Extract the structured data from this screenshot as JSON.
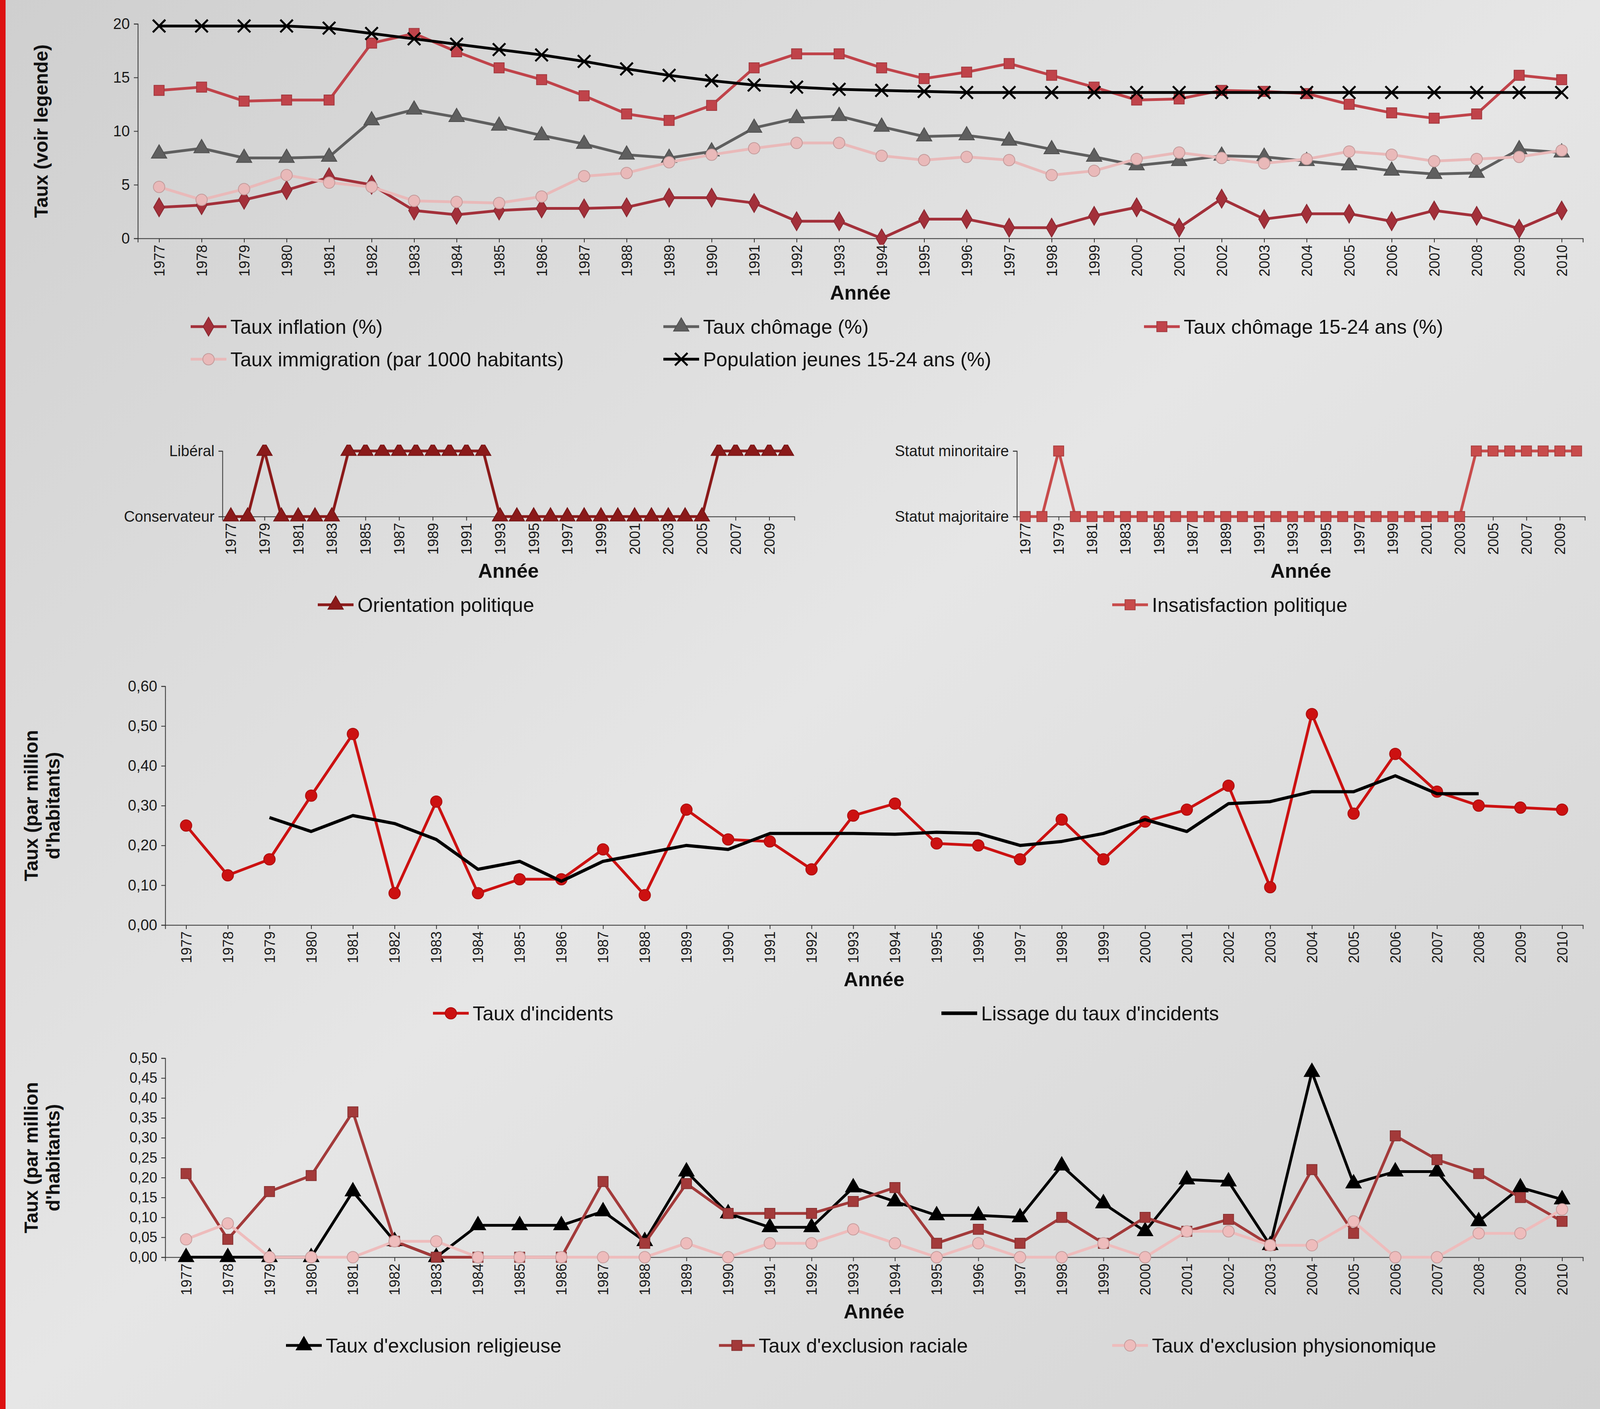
{
  "chart_data": [
    {
      "type": "line",
      "xlabel": "Année",
      "ylabel": "Taux (voir legende)",
      "grid": false,
      "legend": "bottom",
      "x": [
        1977,
        1978,
        1979,
        1980,
        1981,
        1982,
        1983,
        1984,
        1985,
        1986,
        1987,
        1988,
        1989,
        1990,
        1991,
        1992,
        1993,
        1994,
        1995,
        1996,
        1997,
        1998,
        1999,
        2000,
        2001,
        2002,
        2003,
        2004,
        2005,
        2006,
        2007,
        2008,
        2009,
        2010
      ],
      "xlim": [
        1976.5,
        2010.5
      ],
      "xticks": [
        1977,
        1978,
        1979,
        1980,
        1981,
        1982,
        1983,
        1984,
        1985,
        1986,
        1987,
        1988,
        1989,
        1990,
        1991,
        1992,
        1993,
        1994,
        1995,
        1996,
        1997,
        1998,
        1999,
        2000,
        2001,
        2002,
        2003,
        2004,
        2005,
        2006,
        2007,
        2008,
        2009,
        2010
      ],
      "ylim": [
        0,
        20
      ],
      "yticks": [
        0,
        5,
        10,
        15,
        20
      ],
      "series": [
        {
          "name": "Taux inflation (%)",
          "color": "#a3303a",
          "marker": "diamond",
          "line_style": "solid",
          "values": [
            2.9,
            3.1,
            3.6,
            4.5,
            5.7,
            5.0,
            2.6,
            2.2,
            2.6,
            2.8,
            2.8,
            2.9,
            3.8,
            3.8,
            3.3,
            1.6,
            1.6,
            0,
            1.8,
            1.8,
            1.0,
            1.0,
            2.1,
            2.9,
            1.0,
            3.7,
            1.8,
            2.3,
            2.3,
            1.6,
            2.6,
            2.1,
            0.9,
            2.6
          ]
        },
        {
          "name": "Taux chômage (%)",
          "color": "#5f5f5f",
          "marker": "triangle",
          "line_style": "solid",
          "values": [
            7.9,
            8.4,
            7.5,
            7.5,
            7.6,
            11.0,
            12.0,
            11.3,
            10.5,
            9.6,
            8.8,
            7.8,
            7.5,
            8.1,
            10.3,
            11.2,
            11.4,
            10.4,
            9.5,
            9.6,
            9.1,
            8.3,
            7.6,
            6.8,
            7.2,
            7.7,
            7.6,
            7.2,
            6.8,
            6.3,
            6.0,
            6.1,
            8.3,
            8.0
          ]
        },
        {
          "name": "Taux chômage 15-24 ans (%)",
          "color": "#c0434a",
          "marker": "square",
          "line_style": "solid",
          "values": [
            13.8,
            14.1,
            12.8,
            12.9,
            12.9,
            18.2,
            19.1,
            17.4,
            15.9,
            14.8,
            13.3,
            11.6,
            11.0,
            12.4,
            15.9,
            17.2,
            17.2,
            15.9,
            14.9,
            15.5,
            16.3,
            15.2,
            14.1,
            12.9,
            13.0,
            13.8,
            13.7,
            13.5,
            12.5,
            11.7,
            11.2,
            11.6,
            15.2,
            14.8
          ]
        },
        {
          "name": "Taux immigration (par 1000 habitants)",
          "color": "#e9b9b9",
          "marker": "circle",
          "line_style": "solid",
          "values": [
            4.8,
            3.6,
            4.6,
            5.9,
            5.2,
            4.8,
            3.5,
            3.4,
            3.3,
            3.9,
            5.8,
            6.1,
            7.1,
            7.8,
            8.4,
            8.9,
            8.9,
            7.7,
            7.3,
            7.6,
            7.3,
            5.9,
            6.3,
            7.4,
            8.0,
            7.5,
            7.0,
            7.4,
            8.1,
            7.8,
            7.2,
            7.4,
            7.6,
            8.2
          ]
        },
        {
          "name": "Population jeunes 15-24 ans (%)",
          "color": "#000000",
          "marker": "x",
          "line_style": "solid",
          "values": [
            19.8,
            19.8,
            19.8,
            19.8,
            19.6,
            19.1,
            18.6,
            18.1,
            17.6,
            17.1,
            16.5,
            15.8,
            15.2,
            14.7,
            14.3,
            14.1,
            13.9,
            13.8,
            13.7,
            13.6,
            13.6,
            13.6,
            13.6,
            13.6,
            13.6,
            13.6,
            13.6,
            13.6,
            13.6,
            13.6,
            13.6,
            13.6,
            13.6,
            13.6
          ]
        }
      ]
    },
    {
      "type": "line",
      "xlabel": "Année",
      "grid": false,
      "legend": "bottom",
      "x": [
        1977,
        1978,
        1979,
        1980,
        1981,
        1982,
        1983,
        1984,
        1985,
        1986,
        1987,
        1988,
        1989,
        1990,
        1991,
        1992,
        1993,
        1994,
        1995,
        1996,
        1997,
        1998,
        1999,
        2000,
        2001,
        2002,
        2003,
        2004,
        2005,
        2006,
        2007,
        2008,
        2009,
        2010
      ],
      "xlim": [
        1976.5,
        2010.5
      ],
      "xticks": [
        1977,
        1979,
        1981,
        1983,
        1985,
        1987,
        1989,
        1991,
        1993,
        1995,
        1997,
        1999,
        2001,
        2003,
        2005,
        2007,
        2009
      ],
      "ylim": [
        0,
        1
      ],
      "yticks": [
        {
          "value": 0,
          "label": "Conservateur"
        },
        {
          "value": 1,
          "label": "Libéral"
        }
      ],
      "series": [
        {
          "name": "Orientation politique",
          "color": "#8b1a1a",
          "marker": "triangle",
          "line_style": "solid",
          "values": [
            0,
            0,
            1,
            0,
            0,
            0,
            0,
            1,
            1,
            1,
            1,
            1,
            1,
            1,
            1,
            1,
            0,
            0,
            0,
            0,
            0,
            0,
            0,
            0,
            0,
            0,
            0,
            0,
            0,
            1,
            1,
            1,
            1,
            1
          ]
        }
      ]
    },
    {
      "type": "line",
      "xlabel": "Année",
      "grid": false,
      "legend": "bottom",
      "x": [
        1977,
        1978,
        1979,
        1980,
        1981,
        1982,
        1983,
        1984,
        1985,
        1986,
        1987,
        1988,
        1989,
        1990,
        1991,
        1992,
        1993,
        1994,
        1995,
        1996,
        1997,
        1998,
        1999,
        2000,
        2001,
        2002,
        2003,
        2004,
        2005,
        2006,
        2007,
        2008,
        2009,
        2010
      ],
      "xlim": [
        1976.5,
        2010.5
      ],
      "xticks": [
        1977,
        1979,
        1981,
        1983,
        1985,
        1987,
        1989,
        1991,
        1993,
        1995,
        1997,
        1999,
        2001,
        2003,
        2005,
        2007,
        2009
      ],
      "ylim": [
        0,
        1
      ],
      "yticks": [
        {
          "value": 0,
          "label": "Statut majoritaire"
        },
        {
          "value": 1,
          "label": "Statut minoritaire"
        }
      ],
      "series": [
        {
          "name": "Insatisfaction politique",
          "color": "#c84b4b",
          "marker": "square",
          "line_style": "solid",
          "values": [
            0,
            0,
            1,
            0,
            0,
            0,
            0,
            0,
            0,
            0,
            0,
            0,
            0,
            0,
            0,
            0,
            0,
            0,
            0,
            0,
            0,
            0,
            0,
            0,
            0,
            0,
            0,
            1,
            1,
            1,
            1,
            1,
            1,
            1
          ]
        }
      ]
    },
    {
      "type": "line",
      "xlabel": "Année",
      "ylabel": "Taux (par million d'habitants)",
      "grid": false,
      "legend": "bottom",
      "x": [
        1977,
        1978,
        1979,
        1980,
        1981,
        1982,
        1983,
        1984,
        1985,
        1986,
        1987,
        1988,
        1989,
        1990,
        1991,
        1992,
        1993,
        1994,
        1995,
        1996,
        1997,
        1998,
        1999,
        2000,
        2001,
        2002,
        2003,
        2004,
        2005,
        2006,
        2007,
        2008,
        2009,
        2010
      ],
      "xlim": [
        1976.5,
        2010.5
      ],
      "xticks": [
        1977,
        1978,
        1979,
        1980,
        1981,
        1982,
        1983,
        1984,
        1985,
        1986,
        1987,
        1988,
        1989,
        1990,
        1991,
        1992,
        1993,
        1994,
        1995,
        1996,
        1997,
        1998,
        1999,
        2000,
        2001,
        2002,
        2003,
        2004,
        2005,
        2006,
        2007,
        2008,
        2009,
        2010
      ],
      "ylim": [
        0,
        0.6
      ],
      "yticks": [
        {
          "value": 0,
          "label": "0,00"
        },
        {
          "value": 0.1,
          "label": "0,10"
        },
        {
          "value": 0.2,
          "label": "0,20"
        },
        {
          "value": 0.3,
          "label": "0,30"
        },
        {
          "value": 0.4,
          "label": "0,40"
        },
        {
          "value": 0.5,
          "label": "0,50"
        },
        {
          "value": 0.6,
          "label": "0,60"
        }
      ],
      "series": [
        {
          "name": "Taux d'incidents",
          "color": "#cc1111",
          "marker": "circle",
          "line_style": "solid",
          "values": [
            0.25,
            0.125,
            0.165,
            0.325,
            0.48,
            0.08,
            0.31,
            0.08,
            0.115,
            0.115,
            0.19,
            0.075,
            0.29,
            0.215,
            0.21,
            0.14,
            0.275,
            0.305,
            0.205,
            0.2,
            0.165,
            0.265,
            0.165,
            0.26,
            0.29,
            0.35,
            0.095,
            0.53,
            0.28,
            0.43,
            0.335,
            0.3,
            0.295,
            0.29
          ]
        },
        {
          "name": "Lissage du taux d'incidents",
          "color": "#000000",
          "marker": "none",
          "line_style": "solid",
          "values": [
            null,
            null,
            0.27,
            0.235,
            0.275,
            0.255,
            0.215,
            0.14,
            0.16,
            0.11,
            0.16,
            0.18,
            0.2,
            0.19,
            0.23,
            0.23,
            0.23,
            0.228,
            0.233,
            0.23,
            0.2,
            0.21,
            0.23,
            0.265,
            0.235,
            0.305,
            0.31,
            0.335,
            0.335,
            0.375,
            0.33,
            0.33,
            null,
            null
          ]
        }
      ]
    },
    {
      "type": "line",
      "xlabel": "Année",
      "ylabel": "Taux (par million d'habitants)",
      "grid": false,
      "legend": "bottom",
      "x": [
        1977,
        1978,
        1979,
        1980,
        1981,
        1982,
        1983,
        1984,
        1985,
        1986,
        1987,
        1988,
        1989,
        1990,
        1991,
        1992,
        1993,
        1994,
        1995,
        1996,
        1997,
        1998,
        1999,
        2000,
        2001,
        2002,
        2003,
        2004,
        2005,
        2006,
        2007,
        2008,
        2009,
        2010
      ],
      "xlim": [
        1976.5,
        2010.5
      ],
      "xticks": [
        1977,
        1978,
        1979,
        1980,
        1981,
        1982,
        1983,
        1984,
        1985,
        1986,
        1987,
        1988,
        1989,
        1990,
        1991,
        1992,
        1993,
        1994,
        1995,
        1996,
        1997,
        1998,
        1999,
        2000,
        2001,
        2002,
        2003,
        2004,
        2005,
        2006,
        2007,
        2008,
        2009,
        2010
      ],
      "ylim": [
        0,
        0.5
      ],
      "yticks": [
        {
          "value": 0,
          "label": "0,00"
        },
        {
          "value": 0.05,
          "label": "0,05"
        },
        {
          "value": 0.1,
          "label": "0,10"
        },
        {
          "value": 0.15,
          "label": "0,15"
        },
        {
          "value": 0.2,
          "label": "0,20"
        },
        {
          "value": 0.25,
          "label": "0,25"
        },
        {
          "value": 0.3,
          "label": "0,30"
        },
        {
          "value": 0.35,
          "label": "0,35"
        },
        {
          "value": 0.4,
          "label": "0,40"
        },
        {
          "value": 0.45,
          "label": "0,45"
        },
        {
          "value": 0.5,
          "label": "0,50"
        }
      ],
      "series": [
        {
          "name": "Taux d'exclusion religieuse",
          "color": "#000000",
          "marker": "triangle",
          "line_style": "solid",
          "values": [
            0,
            0,
            0,
            0,
            0.165,
            0.04,
            0,
            0.08,
            0.08,
            0.08,
            0.115,
            0.04,
            0.215,
            0.11,
            0.075,
            0.075,
            0.175,
            0.14,
            0.105,
            0.105,
            0.1,
            0.23,
            0.135,
            0.065,
            0.195,
            0.19,
            0.03,
            0.465,
            0.185,
            0.215,
            0.215,
            0.09,
            0.175,
            0.145
          ]
        },
        {
          "name": "Taux d'exclusion raciale",
          "color": "#a33a3a",
          "marker": "square",
          "line_style": "solid",
          "values": [
            0.21,
            0.045,
            0.165,
            0.205,
            0.365,
            0.04,
            0,
            0,
            0,
            0,
            0.19,
            0.035,
            0.185,
            0.11,
            0.11,
            0.11,
            0.14,
            0.175,
            0.035,
            0.07,
            0.035,
            0.1,
            0.035,
            0.1,
            0.065,
            0.095,
            0.03,
            0.22,
            0.06,
            0.305,
            0.245,
            0.21,
            0.15,
            0.09
          ]
        },
        {
          "name": "Taux d'exclusion physionomique",
          "color": "#eebcbc",
          "marker": "circle",
          "line_style": "solid",
          "values": [
            0.045,
            0.085,
            0,
            0,
            0,
            0.04,
            0.04,
            0,
            0,
            0,
            0,
            0,
            0.035,
            0,
            0.035,
            0.035,
            0.07,
            0.035,
            0,
            0.035,
            0,
            0,
            0.035,
            0,
            0.065,
            0.065,
            0.03,
            0.03,
            0.09,
            0,
            0,
            0.06,
            0.06,
            0.12
          ]
        }
      ]
    }
  ]
}
